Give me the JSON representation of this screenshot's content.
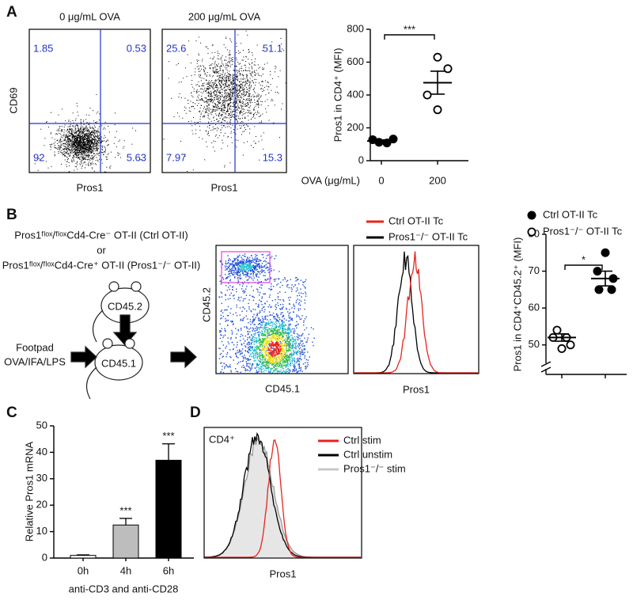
{
  "panels": {
    "A": {
      "label": "A",
      "facs_ylabel": "CD69",
      "facs": [
        {
          "title": "0 μg/mL OVA",
          "xlabel": "Pros1",
          "quadrants": [
            "1.85",
            "0.53",
            "92",
            "5.63"
          ]
        },
        {
          "title": "200 μg/mL OVA",
          "xlabel": "Pros1",
          "quadrants": [
            "25.6",
            "51.1",
            "7.97",
            "15.3"
          ]
        }
      ],
      "chart": {
        "type": "scatter",
        "ylabel": "Pros1 in CD4⁺ (MFI)",
        "xlabel": "OVA (μg/mL)",
        "categories": [
          "0",
          "200"
        ],
        "series": [
          {
            "marker": "filled",
            "values": [
              128,
              112,
              108,
              132
            ],
            "mean": 120,
            "sem": 6
          },
          {
            "marker": "open",
            "values": [
              630,
              560,
              400,
              310
            ],
            "mean": 475,
            "sem": 70
          }
        ],
        "ylim": [
          0,
          800
        ],
        "yticks": [
          0,
          200,
          400,
          600,
          800
        ],
        "significance": "***"
      }
    },
    "B": {
      "label": "B",
      "donor_lines": [
        "Pros1ᶠˡᵒˣ/ᶠˡᵒˣCd4-Cre⁻ OT-II (Ctrl OT-II)",
        "or",
        "Pros1ᶠˡᵒˣ/ᶠˡᵒˣCd4-Cre⁺ OT-II (Pros1⁻/⁻ OT-II)"
      ],
      "donor_marker": "CD45.2",
      "recipient_marker": "CD45.1",
      "injection": [
        "Footpad",
        "OVA/IFA/LPS"
      ],
      "facs": {
        "xlabel": "CD45.1",
        "ylabel": "CD45.2",
        "gate_color": "#e040e0"
      },
      "histogram": {
        "xlabel": "Pros1",
        "legend": [
          {
            "name": "Ctrl OT-II Tc",
            "color": "#e8241c"
          },
          {
            "name": "Pros1⁻/⁻ OT-II Tc",
            "color": "#000000"
          }
        ]
      },
      "chart": {
        "type": "scatter",
        "ylabel": "Pros1 in CD4⁺CD45.2⁺ (MFI)",
        "series": [
          {
            "name": "Pros1⁻/⁻ OT-II Tc",
            "marker": "open",
            "values": [
              54,
              52,
              52,
              50,
              49
            ],
            "mean": 52,
            "sem": 1
          },
          {
            "name": "Ctrl OT-II Tc",
            "marker": "filled",
            "values": [
              75,
              70,
              68,
              65,
              65
            ],
            "mean": 68,
            "sem": 2
          }
        ],
        "ylim": [
          42,
          80
        ],
        "yticks": [
          50,
          60,
          70,
          80
        ],
        "axis_break": true,
        "significance": "*"
      }
    },
    "C": {
      "label": "C",
      "chart": {
        "type": "bar",
        "ylabel": "Relative Pros1 mRNA",
        "xlabel": "anti-CD3 and anti-CD28",
        "categories": [
          "0h",
          "4h",
          "6h"
        ],
        "values": [
          1,
          12.5,
          37
        ],
        "errors": [
          0.2,
          2.5,
          6.2
        ],
        "colors": [
          "#ffffff",
          "#bdbdbd",
          "#000000"
        ],
        "significance": [
          null,
          "***",
          "***"
        ],
        "ylim": [
          0,
          50
        ],
        "yticks": [
          0,
          10,
          20,
          30,
          40,
          50
        ]
      }
    },
    "D": {
      "label": "D",
      "histogram": {
        "inset": "CD4⁺",
        "xlabel": "Pros1",
        "legend": [
          {
            "name": "Ctrl stim",
            "color": "#e8241c"
          },
          {
            "name": "Ctrl unstim",
            "color": "#000000"
          },
          {
            "name": "Pros1⁻/⁻ stim",
            "color": "#c8c8c8"
          }
        ]
      }
    }
  }
}
